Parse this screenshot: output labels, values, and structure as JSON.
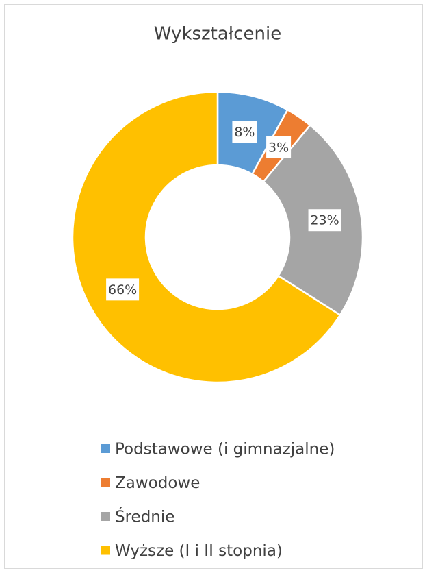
{
  "chart_data": {
    "type": "pie",
    "title": "Wykształcenie",
    "categories": [
      "Podstawowe (i gimnazjalne)",
      "Zawodowe",
      "Średnie",
      "Wyższe (I i II stopnia)"
    ],
    "values": [
      8,
      3,
      23,
      66
    ],
    "value_labels": [
      "8%",
      "3%",
      "23%",
      "66%"
    ],
    "colors": [
      "#5b9bd5",
      "#ed7d31",
      "#a5a5a5",
      "#ffc000"
    ],
    "legend": "bottom"
  }
}
